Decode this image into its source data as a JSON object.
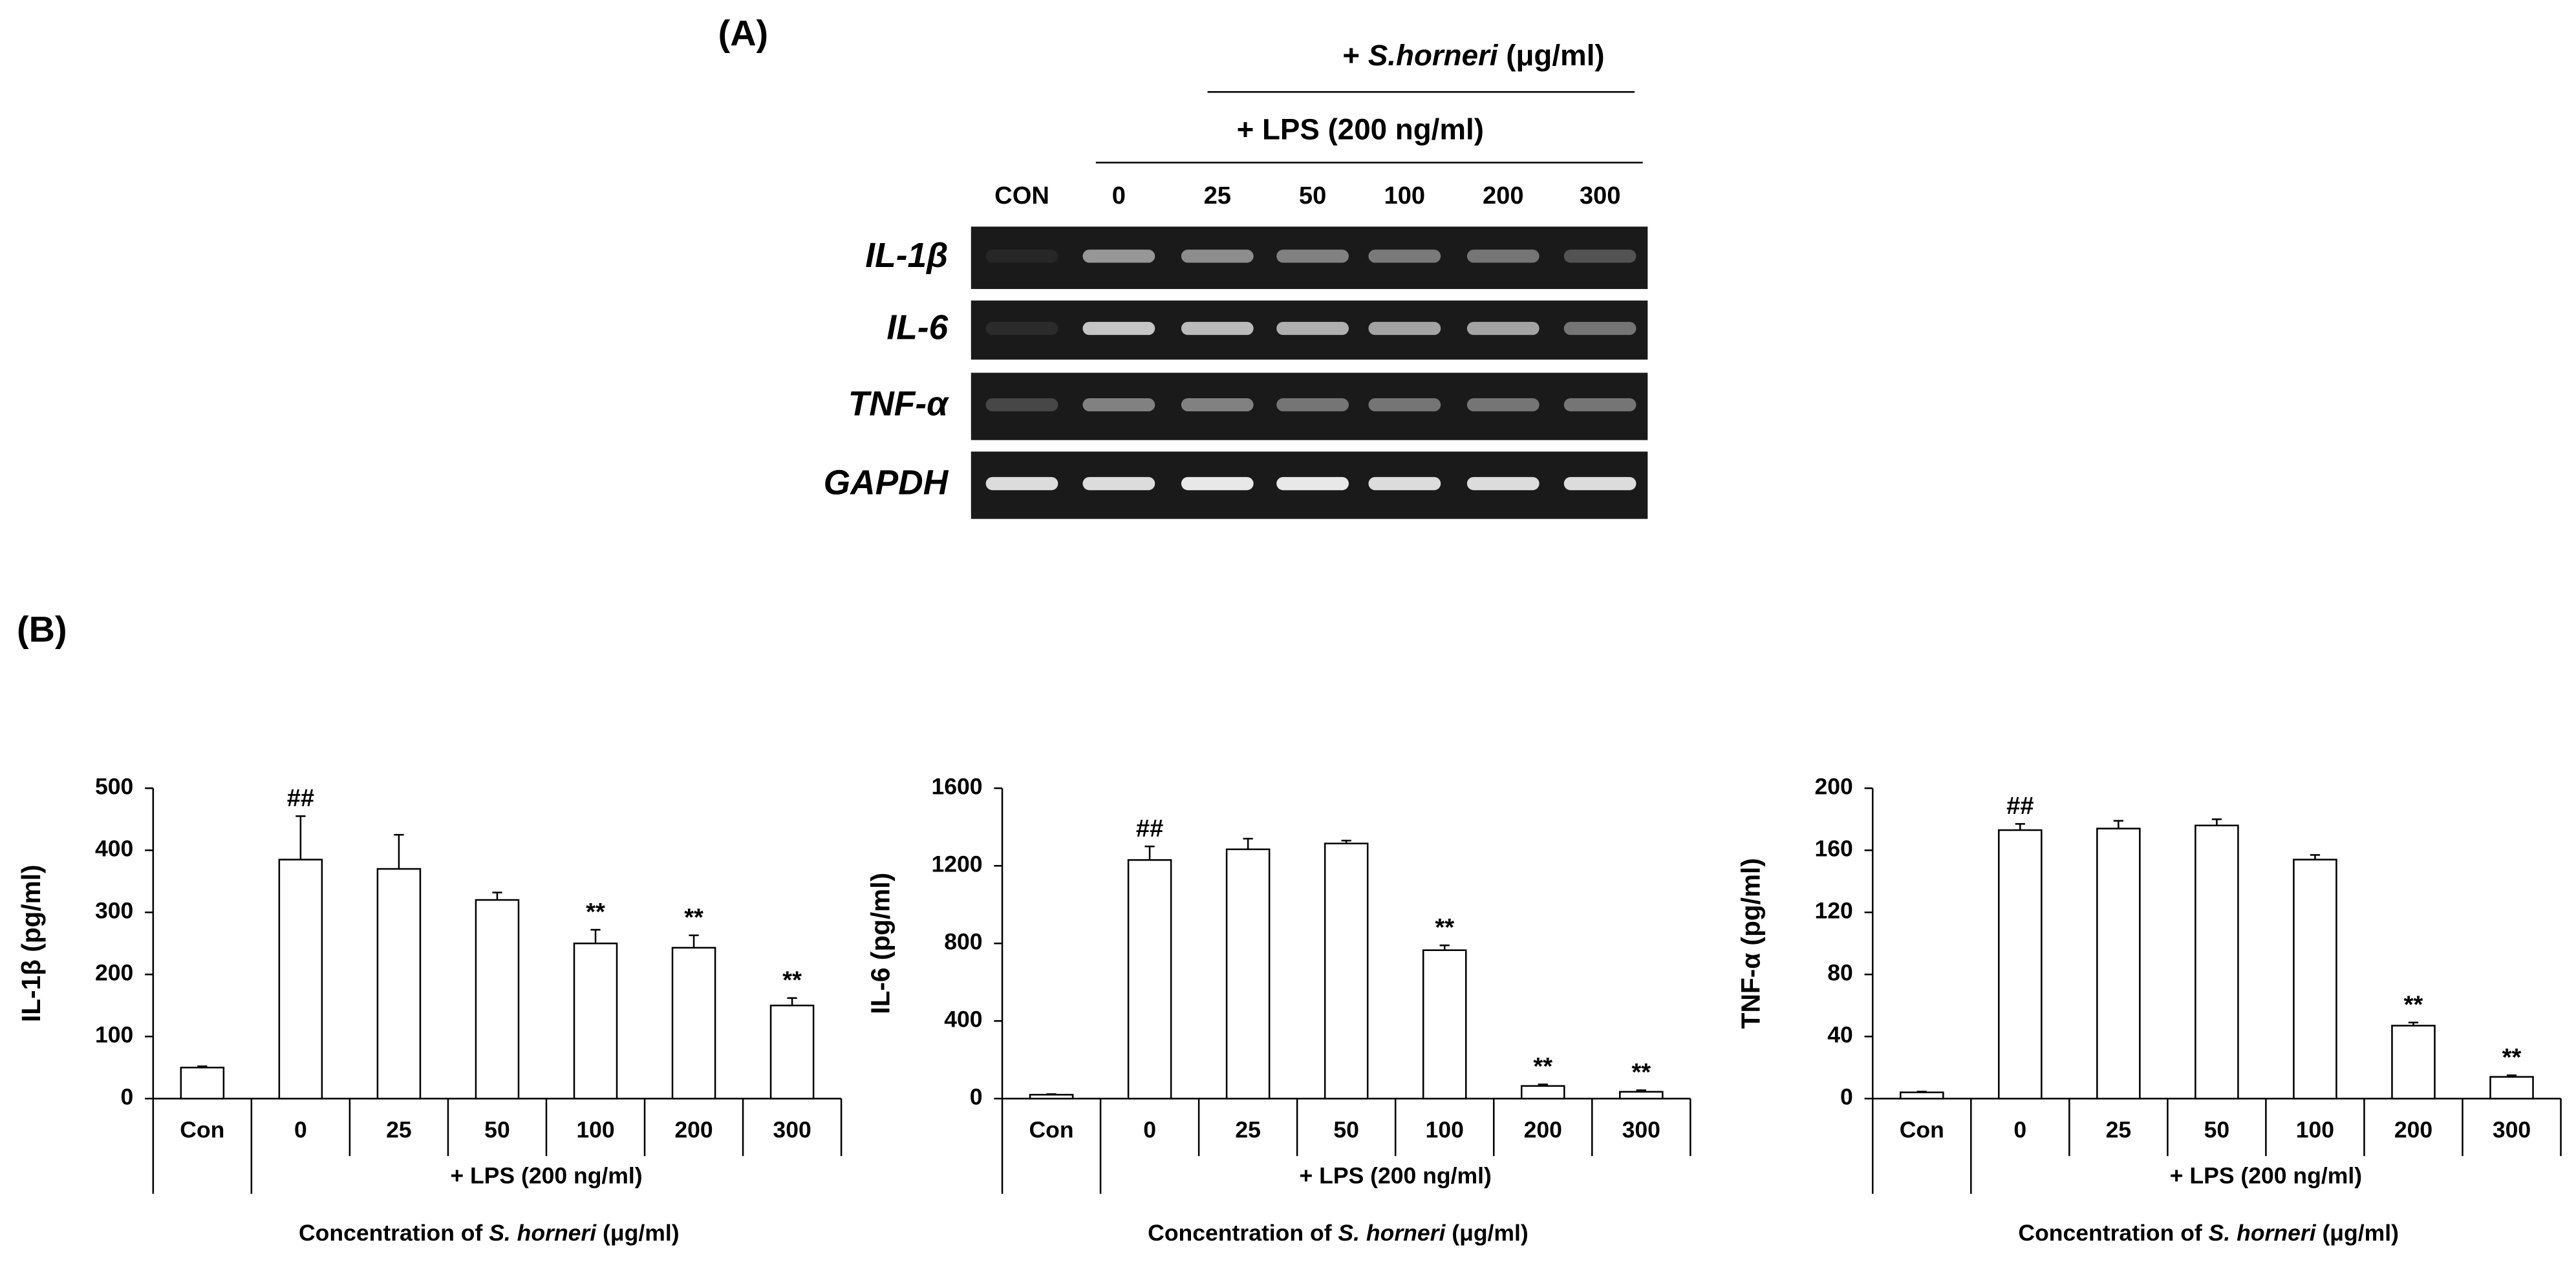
{
  "panel_a": {
    "label": "(A)",
    "treatment": {
      "prefix": "+",
      "italic": "S.horneri",
      "unit": "(μg/ml)"
    },
    "lps": "+ LPS (200 ng/ml)",
    "lanes": [
      "CON",
      "0",
      "25",
      "50",
      "100",
      "200",
      "300"
    ],
    "genes": [
      "IL-1β",
      "IL-6",
      "TNF-α",
      "GAPDH"
    ]
  },
  "panel_b_label": "(B)",
  "chart_data": [
    {
      "type": "bar",
      "y_label": "IL-1β (pg/ml)",
      "categories": [
        "Con",
        "0",
        "25",
        "50",
        "100",
        "200",
        "300"
      ],
      "values": [
        50,
        385,
        370,
        320,
        250,
        243,
        150
      ],
      "errors": [
        2,
        70,
        55,
        12,
        22,
        20,
        12
      ],
      "annotations": [
        null,
        "##",
        null,
        null,
        "**",
        "**",
        "**"
      ],
      "group_label": "+ LPS (200 ng/ml)",
      "x_label": {
        "before": "Concentration of",
        "italic": "S. horneri",
        "after": "(μg/ml)"
      },
      "color": "#ffffff",
      "ylim": [
        0,
        500
      ],
      "yticks": [
        0,
        100,
        200,
        300,
        400,
        500
      ]
    },
    {
      "type": "bar",
      "y_label": "IL-6 (pg/ml)",
      "categories": [
        "Con",
        "0",
        "25",
        "50",
        "100",
        "200",
        "300"
      ],
      "values": [
        20,
        1230,
        1285,
        1315,
        765,
        65,
        35
      ],
      "errors": [
        3,
        70,
        55,
        15,
        25,
        8,
        8
      ],
      "annotations": [
        null,
        "##",
        null,
        null,
        "**",
        "**",
        "**"
      ],
      "group_label": "+ LPS (200 ng/ml)",
      "x_label": {
        "before": "Concentration of",
        "italic": "S. horneri",
        "after": "(μg/ml)"
      },
      "color": "#ffffff",
      "ylim": [
        0,
        1600
      ],
      "yticks": [
        0,
        400,
        800,
        1200,
        1600
      ]
    },
    {
      "type": "bar",
      "y_label": "TNF-α (pg/ml)",
      "categories": [
        "Con",
        "0",
        "25",
        "50",
        "100",
        "200",
        "300"
      ],
      "values": [
        4,
        173,
        174,
        176,
        154,
        47,
        14
      ],
      "errors": [
        0.5,
        4,
        5,
        4,
        3,
        2,
        1
      ],
      "annotations": [
        null,
        "##",
        null,
        null,
        null,
        "**",
        "**"
      ],
      "group_label": "+ LPS (200 ng/ml)",
      "x_label": {
        "before": "Concentration of",
        "italic": "S. horneri",
        "after": "(μg/ml)"
      },
      "color": "#ffffff",
      "ylim": [
        0,
        200
      ],
      "yticks": [
        0,
        40,
        80,
        120,
        160,
        200
      ]
    }
  ]
}
